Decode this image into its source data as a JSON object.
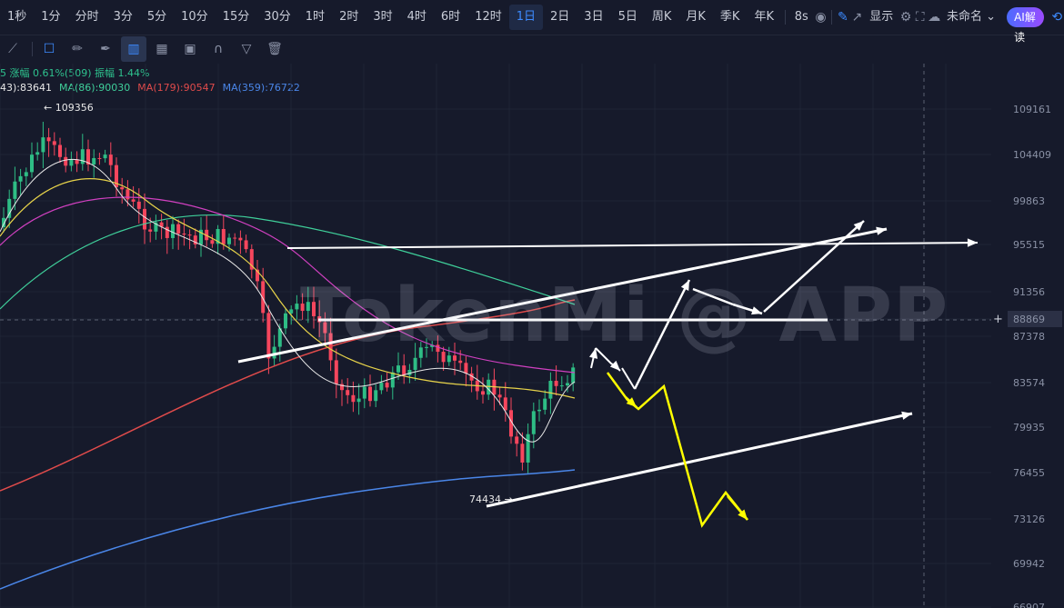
{
  "timeframes": [
    "1秒",
    "1分",
    "分时",
    "3分",
    "5分",
    "10分",
    "15分",
    "30分",
    "1时",
    "2时",
    "3时",
    "4时",
    "6时",
    "12时",
    "1日",
    "2日",
    "3日",
    "5日",
    "周K",
    "月K",
    "季K",
    "年K"
  ],
  "active_timeframe_index": 14,
  "refresh_interval": "8s",
  "display_label": "显示",
  "cloud_label": "未命名",
  "ai_button_label": "AI解读",
  "info_line1": "5 涨幅 0.61%(509) 振幅 1.44%",
  "ma_lines": [
    {
      "label": "43):83641",
      "color": "#e8e8e8"
    },
    {
      "label": "MA(86):90030",
      "color": "#3fcf9a"
    },
    {
      "label": "MA(179):90547",
      "color": "#e04b4b"
    },
    {
      "label": "MA(359):76722",
      "color": "#4a86e8"
    }
  ],
  "price_axis": [
    "109161",
    "104409",
    "99863",
    "95515",
    "91356",
    "88869",
    "87378",
    "83574",
    "79935",
    "76455",
    "73126",
    "69942",
    "66907"
  ],
  "current_price": "88869",
  "high_label": "109356",
  "low_label": "74434",
  "watermark": "TokenMi @ APP",
  "colors": {
    "up": "#2ebd85",
    "down": "#f6465d",
    "accent": "#3d8bff",
    "yellow": "#ffff00",
    "white": "#ffffff"
  }
}
